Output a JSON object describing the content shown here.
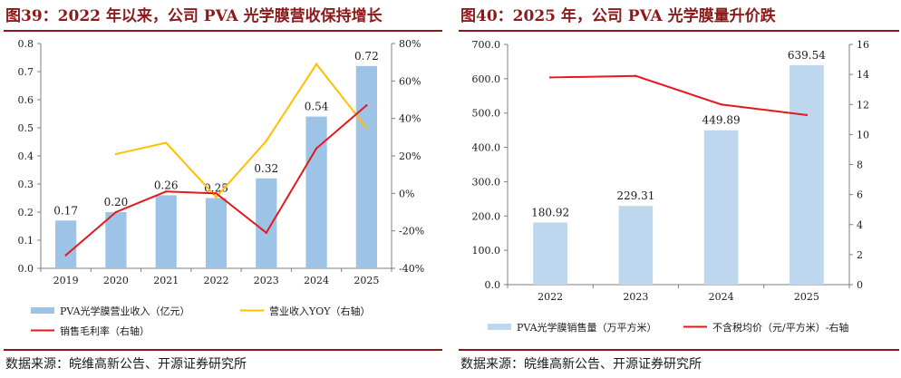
{
  "left": {
    "title": "图39：2022 年以来，公司 PVA 光学膜营收保持增长",
    "source": "数据来源：皖维高新公告、开源证券研究所",
    "chart_data": {
      "type": "bar",
      "categories": [
        "2019",
        "2020",
        "2021",
        "2022",
        "2023",
        "2024",
        "2025"
      ],
      "series": [
        {
          "name": "PVA光学膜营业收入（亿元）",
          "kind": "bar",
          "axis": "left",
          "values": [
            0.17,
            0.2,
            0.26,
            0.25,
            0.32,
            0.54,
            0.72
          ],
          "labels": [
            "0.17",
            "0.20",
            "0.26",
            "0.25",
            "0.32",
            "0.54",
            "0.72"
          ]
        },
        {
          "name": "营业收入YOY（右轴）",
          "kind": "line",
          "axis": "right",
          "values": [
            null,
            21,
            27,
            -2,
            28,
            69,
            35
          ]
        },
        {
          "name": "销售毛利率（右轴）",
          "kind": "line",
          "axis": "right",
          "values": [
            -33,
            -10,
            1,
            0,
            -21,
            24,
            47
          ]
        }
      ],
      "ylim": [
        0,
        0.8
      ],
      "yticks": [
        "0.0",
        "0.1",
        "0.2",
        "0.3",
        "0.4",
        "0.5",
        "0.6",
        "0.7",
        "0.8"
      ],
      "y2lim": [
        -40,
        80
      ],
      "y2ticks": [
        "-40%",
        "-20%",
        "0%",
        "20%",
        "40%",
        "60%",
        "80%"
      ],
      "grid": false,
      "legend": "bottom",
      "colors": {
        "bar": "#9dc3e6",
        "yoy": "#ffc000",
        "margin": "#e31a1c"
      }
    }
  },
  "right": {
    "title": "图40：2025 年，公司 PVA 光学膜量升价跌",
    "source": "数据来源：皖维高新公告、开源证券研究所",
    "chart_data": {
      "type": "bar",
      "categories": [
        "2022",
        "2023",
        "2024",
        "2025"
      ],
      "series": [
        {
          "name": "PVA光学膜销售量（万平方米）",
          "kind": "bar",
          "axis": "left",
          "values": [
            180.92,
            229.31,
            449.89,
            639.54
          ],
          "labels": [
            "180.92",
            "229.31",
            "449.89",
            "639.54"
          ]
        },
        {
          "name": "不含税均价（元/平方米）-右轴",
          "kind": "line",
          "axis": "right",
          "values": [
            13.8,
            13.9,
            12.0,
            11.3
          ]
        }
      ],
      "ylim": [
        0,
        700
      ],
      "yticks": [
        "0.0",
        "100.0",
        "200.0",
        "300.0",
        "400.0",
        "500.0",
        "600.0",
        "700.0"
      ],
      "y2lim": [
        0,
        16
      ],
      "y2ticks": [
        "0",
        "2",
        "4",
        "6",
        "8",
        "10",
        "12",
        "14",
        "16"
      ],
      "grid": false,
      "legend": "bottom",
      "colors": {
        "bar": "#bdd7ee",
        "price": "#e31a1c"
      }
    }
  }
}
